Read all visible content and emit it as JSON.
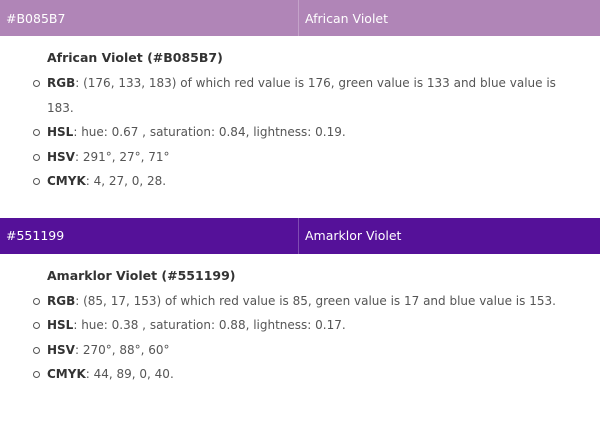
{
  "sections": [
    {
      "hex": "#B085B7",
      "name": "African Violet",
      "title": "African Violet (#B085B7)",
      "items": [
        {
          "label": "RGB",
          "text": ": (176, 133, 183) of which red value is 176, green value is 133 and blue value is 183."
        },
        {
          "label": "HSL",
          "text": ": hue: 0.67 , saturation: 0.84, lightness: 0.19."
        },
        {
          "label": "HSV",
          "text": ": 291°, 27°, 71°"
        },
        {
          "label": "CMYK",
          "text": ": 4, 27, 0, 28."
        }
      ]
    },
    {
      "hex": "#551199",
      "name": "Amarklor Violet",
      "title": "Amarklor Violet (#551199)",
      "items": [
        {
          "label": "RGB",
          "text": ": (85, 17, 153) of which red value is 85, green value is 17 and blue value is 153."
        },
        {
          "label": "HSL",
          "text": ": hue: 0.38 , saturation: 0.88, lightness: 0.17."
        },
        {
          "label": "HSV",
          "text": ": 270°, 88°, 60°"
        },
        {
          "label": "CMYK",
          "text": ": 44, 89, 0, 40."
        }
      ]
    }
  ]
}
